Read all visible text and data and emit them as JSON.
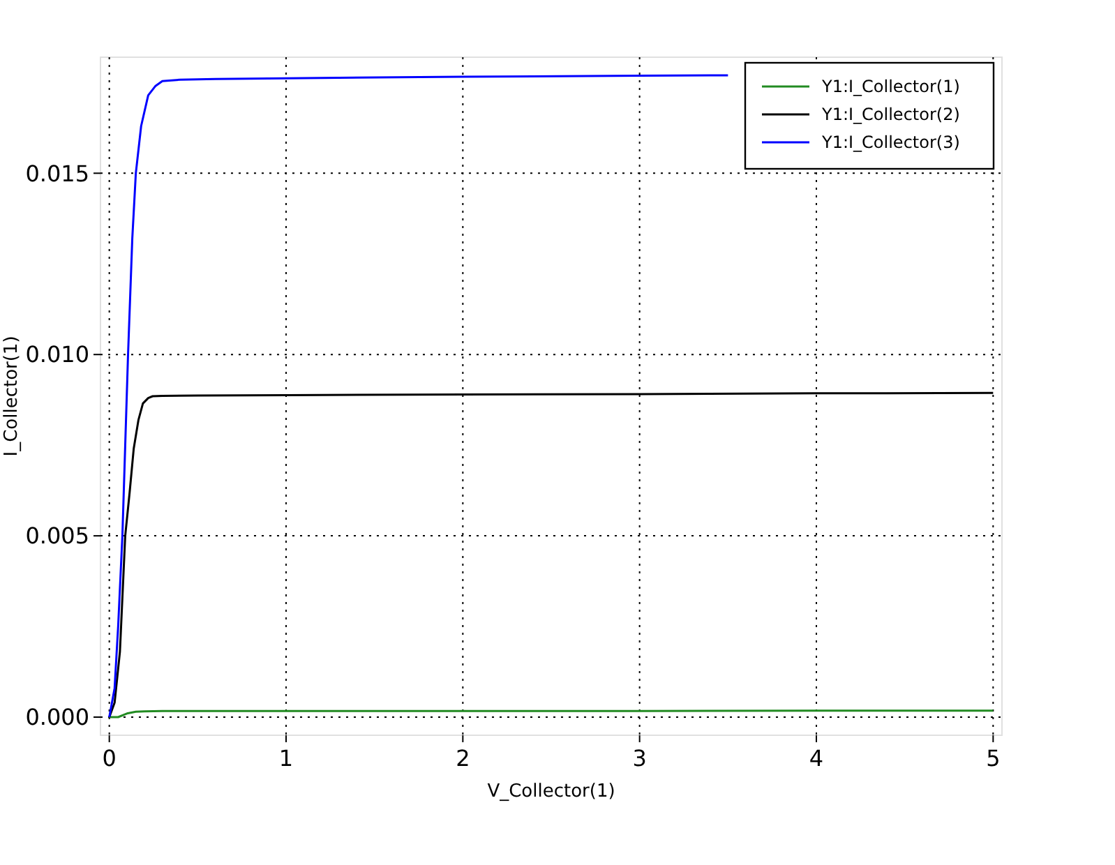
{
  "chart_data": {
    "type": "line",
    "xlabel": "V_Collector(1)",
    "ylabel": "I_Collector(1)",
    "xlim": [
      -0.05,
      5.05
    ],
    "ylim": [
      -0.0005,
      0.0182
    ],
    "xticks": [
      0,
      1,
      2,
      3,
      4,
      5
    ],
    "yticks": [
      {
        "value": 0,
        "label": "0.000"
      },
      {
        "value": 0.005,
        "label": "0.005"
      },
      {
        "value": 0.01,
        "label": "0.010"
      },
      {
        "value": 0.015,
        "label": "0.015"
      }
    ],
    "grid": true,
    "legend": "top right",
    "line_style": "solid",
    "marker": "none",
    "series": [
      {
        "name": "Y1:I_Collector(1)",
        "color": "#228b22",
        "x": [
          0,
          0.05,
          0.1,
          0.15,
          0.2,
          0.3,
          1,
          2,
          3,
          4,
          5
        ],
        "values": [
          0,
          0,
          0.0001,
          0.00015,
          0.00016,
          0.00017,
          0.00017,
          0.00017,
          0.00017,
          0.00018,
          0.00018
        ]
      },
      {
        "name": "Y1:I_Collector(2)",
        "color": "#000000",
        "x": [
          0,
          0.03,
          0.06,
          0.09,
          0.115,
          0.138,
          0.165,
          0.19,
          0.22,
          0.245,
          0.3,
          0.5,
          1,
          2,
          3,
          4,
          5
        ],
        "values": [
          0,
          0.0004,
          0.0018,
          0.005,
          0.0062,
          0.0074,
          0.0082,
          0.00865,
          0.0088,
          0.00885,
          0.00886,
          0.00887,
          0.00888,
          0.0089,
          0.00891,
          0.00893,
          0.00894
        ]
      },
      {
        "name": "Y1:I_Collector(3)",
        "color": "#0000ff",
        "x": [
          0,
          0.03,
          0.05,
          0.074,
          0.09,
          0.106,
          0.13,
          0.15,
          0.18,
          0.22,
          0.26,
          0.3,
          0.4,
          0.6,
          1,
          2,
          3,
          3.5
        ],
        "values": [
          0,
          0.0008,
          0.0025,
          0.005,
          0.0075,
          0.01,
          0.0132,
          0.015,
          0.0163,
          0.01715,
          0.0174,
          0.01754,
          0.01758,
          0.0176,
          0.01762,
          0.01766,
          0.01769,
          0.0177
        ]
      }
    ]
  }
}
